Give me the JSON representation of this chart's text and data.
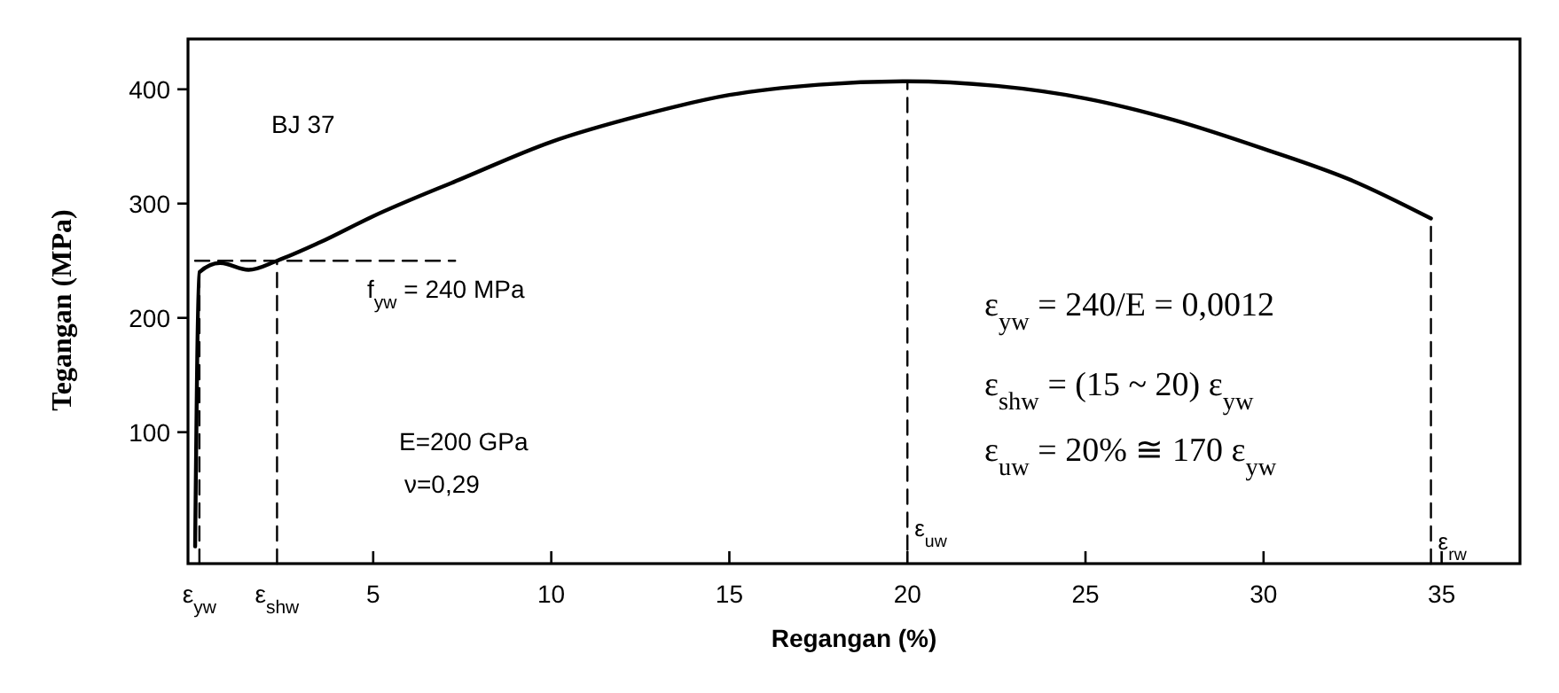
{
  "chart_data": {
    "type": "line",
    "xlabel": "Regangan (%)",
    "ylabel": "Tegangan (MPa)",
    "xlim": [
      -0.2,
      37.2
    ],
    "ylim": [
      -15,
      444
    ],
    "xticks": [
      {
        "value": 0.12,
        "label": "ε$_{yw}$"
      },
      {
        "value": 2.3,
        "label": "ε$_{shw}$"
      },
      5,
      10,
      15,
      20,
      25,
      30,
      35
    ],
    "yticks": [
      100,
      200,
      300,
      400
    ],
    "grid": false,
    "marker": "none",
    "series": [
      {
        "color": "#000000",
        "line_style": "solid",
        "x": [
          0,
          0.12,
          0.7,
          1.5,
          2.3,
          3.5,
          5,
          7.5,
          10,
          12.5,
          15,
          17.5,
          20,
          22.5,
          25,
          27.5,
          30,
          32.5,
          34.7
        ],
        "values": [
          0,
          240,
          248,
          242,
          250,
          266,
          289,
          322,
          354,
          377,
          395,
          404,
          407,
          403,
          392,
          373,
          348,
          320,
          287
        ]
      },
      {
        "color": "#000000",
        "line_style": "dashed",
        "x": [
          0,
          7.3
        ],
        "values": [
          250,
          250
        ]
      },
      {
        "color": "#000000",
        "line_style": "dashed",
        "x": [
          0.12,
          0.12
        ],
        "values": [
          -15,
          240
        ]
      },
      {
        "color": "#000000",
        "line_style": "dashed",
        "x": [
          2.3,
          2.3
        ],
        "values": [
          -15,
          250
        ]
      },
      {
        "color": "#000000",
        "line_style": "dashed",
        "x": [
          20,
          20
        ],
        "values": [
          -3,
          407
        ]
      },
      {
        "color": "#000000",
        "line_style": "dashed",
        "x": [
          34.7,
          34.7
        ],
        "values": [
          -15,
          287
        ]
      }
    ],
    "annotations": [
      "BJ 37",
      "f$_{yw}$ = 240 MPa",
      "E=200 GPa",
      "ν=0,29",
      "ε$_{yw}$ = 240/E = 0,0012",
      "ε$_{shw}$ = (15 ~ 20) ε$_{yw}$",
      "ε$_{uw}$ = 20% ≅ 170 ε$_{yw}$",
      {
        "text": "ε$_{uw}$",
        "x": 20,
        "y": -3
      },
      {
        "text": "ε$_{rw}$",
        "x": 34.7,
        "y": -15
      }
    ]
  }
}
